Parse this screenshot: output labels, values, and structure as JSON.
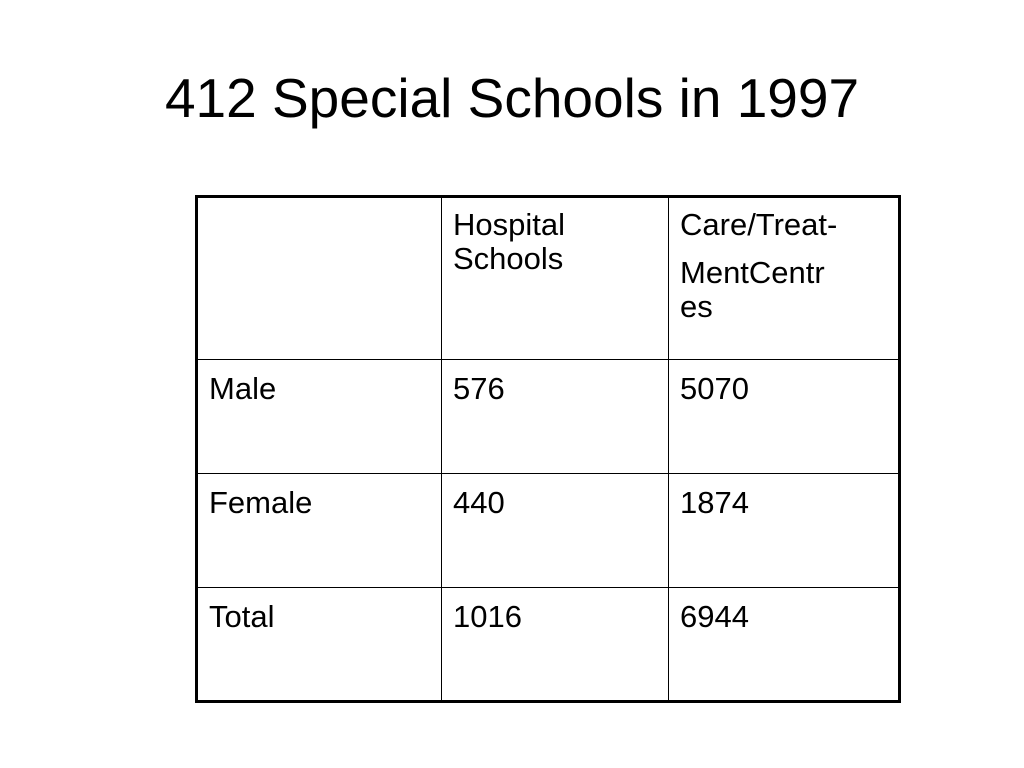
{
  "slide": {
    "title": "412 Special Schools in 1997"
  },
  "table": {
    "header": {
      "corner": "",
      "hospital_line1": "Hospital",
      "hospital_line2": "Schools",
      "care_line1": "Care/Treat-",
      "care_line2": "MentCentr",
      "care_line3": "es"
    },
    "rows": [
      {
        "label": "Male",
        "hospital": "576",
        "care": "5070"
      },
      {
        "label": "Female",
        "hospital": "440",
        "care": "1874"
      },
      {
        "label": "Total",
        "hospital": "1016",
        "care": "6944"
      }
    ]
  }
}
